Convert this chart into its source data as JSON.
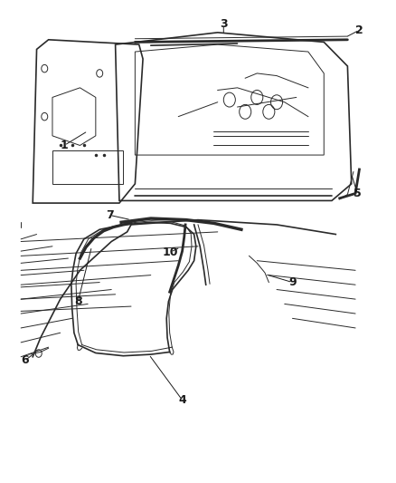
{
  "background_color": "#ffffff",
  "line_color": "#2a2a2a",
  "label_color": "#1a1a1a",
  "label_fontsize": 9,
  "figure_width": 4.38,
  "figure_height": 5.33,
  "dpi": 100
}
